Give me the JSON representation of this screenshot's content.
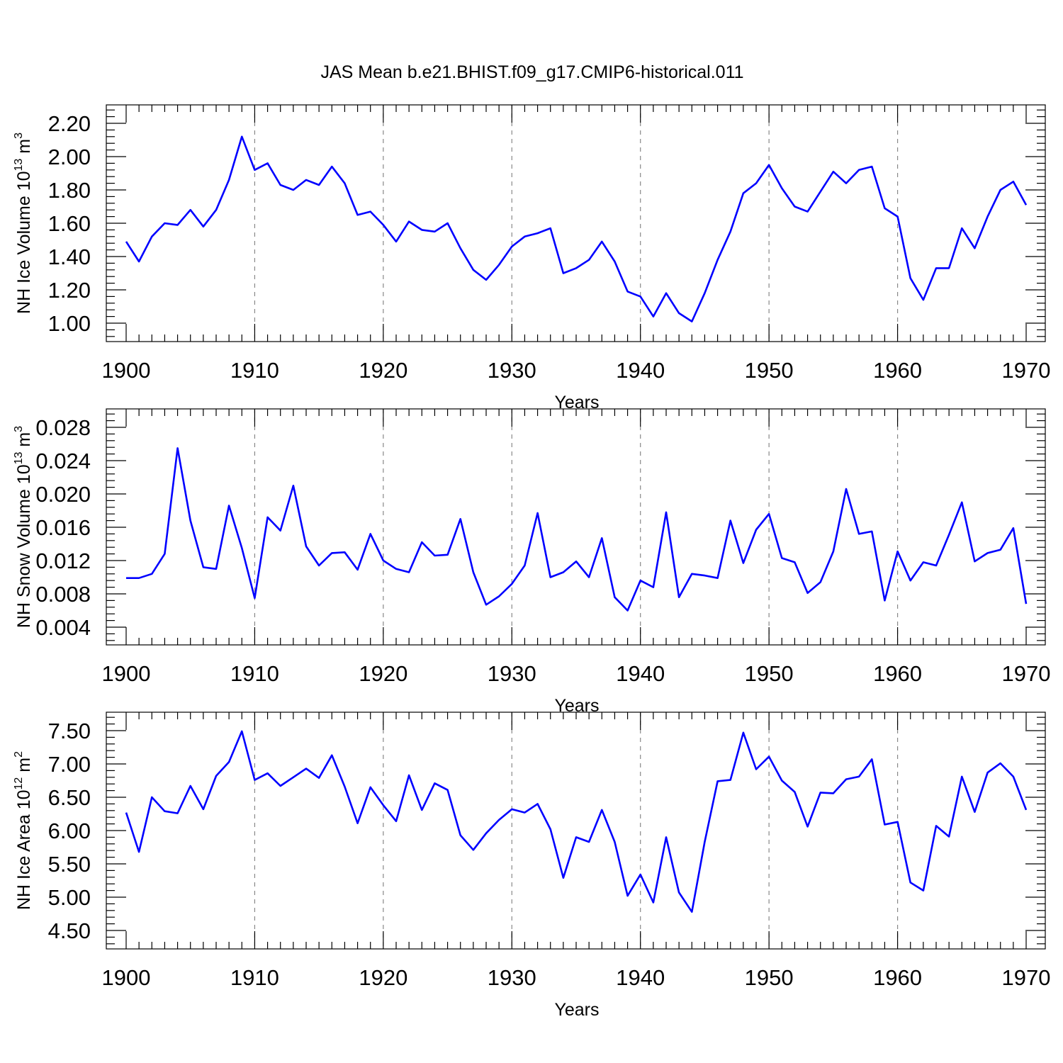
{
  "title": "JAS Mean b.e21.BHIST.f09_g17.CMIP6-historical.011",
  "colors": {
    "line": "#0000ff",
    "axis": "#000000",
    "grid": "#888888"
  },
  "chart_data": [
    {
      "type": "line",
      "xlabel": "Years",
      "ylabel": {
        "main": "NH Ice Volume 10",
        "sup": "13",
        "unit": " m",
        "unit_sup": "3"
      },
      "xlim": [
        1900,
        1970
      ],
      "ylim": [
        1.0,
        2.2
      ],
      "xticks": [
        "1900",
        "1910",
        "1920",
        "1930",
        "1940",
        "1950",
        "1960",
        "1970"
      ],
      "yticks": [
        "1.00",
        "1.20",
        "1.40",
        "1.60",
        "1.80",
        "2.00",
        "2.20"
      ],
      "grid": "vertical dashed at major x ticks",
      "x": [
        1900,
        1901,
        1902,
        1903,
        1904,
        1905,
        1906,
        1907,
        1908,
        1909,
        1910,
        1911,
        1912,
        1913,
        1914,
        1915,
        1916,
        1917,
        1918,
        1919,
        1920,
        1921,
        1922,
        1923,
        1924,
        1925,
        1926,
        1927,
        1928,
        1929,
        1930,
        1931,
        1932,
        1933,
        1934,
        1935,
        1936,
        1937,
        1938,
        1939,
        1940,
        1941,
        1942,
        1943,
        1944,
        1945,
        1946,
        1947,
        1948,
        1949,
        1950,
        1951,
        1952,
        1953,
        1954,
        1955,
        1956,
        1957,
        1958,
        1959,
        1960,
        1961,
        1962,
        1963,
        1964,
        1965,
        1966,
        1967,
        1968,
        1969,
        1970
      ],
      "values": [
        1.49,
        1.37,
        1.52,
        1.6,
        1.59,
        1.68,
        1.58,
        1.68,
        1.86,
        2.12,
        1.92,
        1.96,
        1.83,
        1.8,
        1.86,
        1.83,
        1.94,
        1.84,
        1.65,
        1.67,
        1.59,
        1.49,
        1.61,
        1.56,
        1.55,
        1.6,
        1.45,
        1.32,
        1.26,
        1.35,
        1.46,
        1.52,
        1.54,
        1.57,
        1.3,
        1.33,
        1.38,
        1.49,
        1.37,
        1.19,
        1.16,
        1.04,
        1.18,
        1.06,
        1.01,
        1.18,
        1.38,
        1.55,
        1.78,
        1.84,
        1.95,
        1.81,
        1.7,
        1.67,
        1.79,
        1.91,
        1.84,
        1.92,
        1.94,
        1.69,
        1.64,
        1.27,
        1.14,
        1.33,
        1.33,
        1.57,
        1.45,
        1.64,
        1.8,
        1.85,
        1.71
      ]
    },
    {
      "type": "line",
      "xlabel": "Years",
      "ylabel": {
        "main": "NH Snow Volume 10",
        "sup": "13",
        "unit": " m",
        "unit_sup": "3"
      },
      "xlim": [
        1900,
        1970
      ],
      "ylim": [
        0.004,
        0.028
      ],
      "xticks": [
        "1900",
        "1910",
        "1920",
        "1930",
        "1940",
        "1950",
        "1960",
        "1970"
      ],
      "yticks": [
        "0.004",
        "0.008",
        "0.012",
        "0.016",
        "0.020",
        "0.024",
        "0.028"
      ],
      "grid": "vertical dashed at major x ticks",
      "x": [
        1900,
        1901,
        1902,
        1903,
        1904,
        1905,
        1906,
        1907,
        1908,
        1909,
        1910,
        1911,
        1912,
        1913,
        1914,
        1915,
        1916,
        1917,
        1918,
        1919,
        1920,
        1921,
        1922,
        1923,
        1924,
        1925,
        1926,
        1927,
        1928,
        1929,
        1930,
        1931,
        1932,
        1933,
        1934,
        1935,
        1936,
        1937,
        1938,
        1939,
        1940,
        1941,
        1942,
        1943,
        1944,
        1945,
        1946,
        1947,
        1948,
        1949,
        1950,
        1951,
        1952,
        1953,
        1954,
        1955,
        1956,
        1957,
        1958,
        1959,
        1960,
        1961,
        1962,
        1963,
        1964,
        1965,
        1966,
        1967,
        1968,
        1969,
        1970
      ],
      "values": [
        0.0099,
        0.0099,
        0.0104,
        0.0128,
        0.0255,
        0.0168,
        0.0112,
        0.011,
        0.0186,
        0.0135,
        0.0075,
        0.0172,
        0.0156,
        0.021,
        0.0137,
        0.0114,
        0.0129,
        0.013,
        0.0109,
        0.0152,
        0.012,
        0.011,
        0.0106,
        0.0142,
        0.0126,
        0.0127,
        0.017,
        0.0106,
        0.0067,
        0.0077,
        0.0092,
        0.0114,
        0.0177,
        0.01,
        0.0106,
        0.0119,
        0.01,
        0.0147,
        0.0076,
        0.006,
        0.0096,
        0.0088,
        0.0178,
        0.0076,
        0.0104,
        0.0102,
        0.0099,
        0.0168,
        0.0117,
        0.0157,
        0.0176,
        0.0123,
        0.0118,
        0.0081,
        0.0094,
        0.0131,
        0.0206,
        0.0152,
        0.0155,
        0.0072,
        0.0131,
        0.0096,
        0.0118,
        0.0114,
        0.0151,
        0.019,
        0.0119,
        0.0129,
        0.0133,
        0.0159,
        0.0068
      ]
    },
    {
      "type": "line",
      "xlabel": "Years",
      "ylabel": {
        "main": "NH Ice Area 10",
        "sup": "12",
        "unit": " m",
        "unit_sup": "2"
      },
      "xlim": [
        1900,
        1970
      ],
      "ylim": [
        4.5,
        7.5
      ],
      "xticks": [
        "1900",
        "1910",
        "1920",
        "1930",
        "1940",
        "1950",
        "1960",
        "1970"
      ],
      "yticks": [
        "4.50",
        "5.00",
        "5.50",
        "6.00",
        "6.50",
        "7.00",
        "7.50"
      ],
      "grid": "vertical dashed at major x ticks",
      "x": [
        1900,
        1901,
        1902,
        1903,
        1904,
        1905,
        1906,
        1907,
        1908,
        1909,
        1910,
        1911,
        1912,
        1913,
        1914,
        1915,
        1916,
        1917,
        1918,
        1919,
        1920,
        1921,
        1922,
        1923,
        1924,
        1925,
        1926,
        1927,
        1928,
        1929,
        1930,
        1931,
        1932,
        1933,
        1934,
        1935,
        1936,
        1937,
        1938,
        1939,
        1940,
        1941,
        1942,
        1943,
        1944,
        1945,
        1946,
        1947,
        1948,
        1949,
        1950,
        1951,
        1952,
        1953,
        1954,
        1955,
        1956,
        1957,
        1958,
        1959,
        1960,
        1961,
        1962,
        1963,
        1964,
        1965,
        1966,
        1967,
        1968,
        1969,
        1970
      ],
      "values": [
        6.27,
        5.68,
        6.5,
        6.29,
        6.26,
        6.67,
        6.32,
        6.82,
        7.03,
        7.49,
        6.76,
        6.86,
        6.67,
        6.8,
        6.93,
        6.79,
        7.13,
        6.66,
        6.11,
        6.65,
        6.38,
        6.14,
        6.83,
        6.31,
        6.71,
        6.61,
        5.93,
        5.71,
        5.96,
        6.16,
        6.32,
        6.27,
        6.4,
        6.02,
        5.29,
        5.9,
        5.83,
        6.31,
        5.83,
        5.02,
        5.34,
        4.92,
        5.9,
        5.07,
        4.78,
        5.83,
        6.74,
        6.76,
        7.47,
        6.92,
        7.11,
        6.75,
        6.58,
        6.06,
        6.57,
        6.56,
        6.77,
        6.81,
        7.07,
        6.09,
        6.13,
        5.22,
        5.1,
        6.07,
        5.91,
        6.81,
        6.28,
        6.87,
        7.01,
        6.81,
        6.31
      ]
    }
  ]
}
